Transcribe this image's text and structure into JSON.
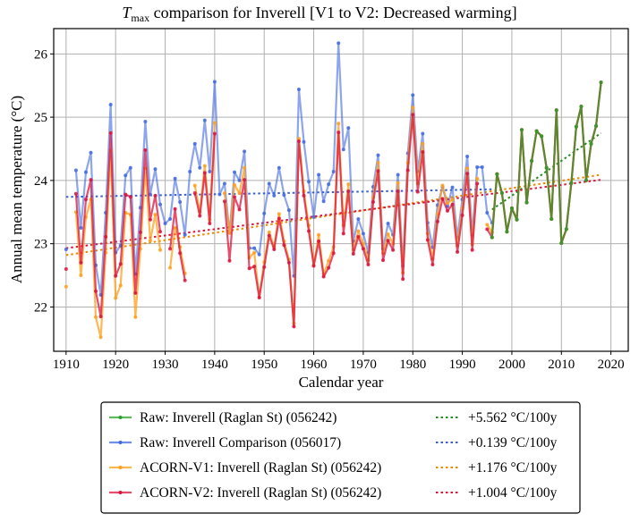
{
  "chart_data": {
    "type": "line",
    "title": {
      "symbol": "T",
      "subscript": "max",
      "text": " comparison for Inverell   [V1 to V2: Decreased warming]"
    },
    "xlabel": "Calendar year",
    "ylabel": "Annual mean temperature (°C)",
    "xlim": [
      1907.5,
      2023.5
    ],
    "ylim": [
      21.3,
      26.4
    ],
    "xticks": [
      1910,
      1920,
      1930,
      1940,
      1950,
      1960,
      1970,
      1980,
      1990,
      2000,
      2010,
      2020
    ],
    "yticks": [
      22,
      23,
      24,
      25,
      26
    ],
    "grid": true,
    "legend_position": "below-center",
    "series": [
      {
        "name": "Raw: Inverell (Raglan St) (056242)",
        "color": "#2ca02c",
        "x": [
          1996,
          1997,
          1998,
          1999,
          2000,
          2001,
          2002,
          2003,
          2004,
          2005,
          2006,
          2007,
          2008,
          2009,
          2010,
          2011,
          2012,
          2013,
          2014,
          2015,
          2016,
          2017,
          2018
        ],
        "y": [
          23.1,
          24.1,
          23.8,
          23.19,
          23.56,
          23.38,
          24.8,
          23.65,
          24.31,
          24.78,
          24.7,
          24.2,
          23.39,
          25.11,
          23.01,
          23.23,
          23.96,
          24.85,
          25.17,
          24.0,
          24.58,
          24.86,
          25.55
        ]
      },
      {
        "name": "Raw: Inverell Comparison (056017)",
        "color": "#4169e1",
        "x": [
          1910,
          1912,
          1913,
          1914,
          1915,
          1916,
          1917,
          1918,
          1919,
          1920,
          1921,
          1922,
          1923,
          1924,
          1925,
          1926,
          1927,
          1928,
          1929,
          1930,
          1931,
          1932,
          1933,
          1934,
          1935,
          1936,
          1937,
          1938,
          1939,
          1940,
          1941,
          1942,
          1943,
          1944,
          1945,
          1946,
          1947,
          1948,
          1949,
          1950,
          1951,
          1952,
          1953,
          1954,
          1955,
          1956,
          1957,
          1958,
          1959,
          1960,
          1961,
          1962,
          1963,
          1964,
          1965,
          1966,
          1967,
          1968,
          1969,
          1970,
          1971,
          1972,
          1973,
          1974,
          1975,
          1976,
          1977,
          1978,
          1979,
          1980,
          1981,
          1982,
          1983,
          1984,
          1985,
          1986,
          1987,
          1988,
          1989,
          1990,
          1991,
          1992,
          1993,
          1994,
          1995,
          1996
        ],
        "y": [
          22.91,
          24.16,
          23.25,
          24.13,
          24.44,
          22.66,
          22.19,
          23.49,
          25.2,
          22.86,
          22.97,
          24.08,
          24.2,
          22.52,
          23.57,
          24.93,
          23.78,
          24.18,
          23.62,
          23.32,
          23.39,
          24.03,
          23.66,
          23.14,
          24.14,
          24.58,
          24.2,
          24.95,
          24.14,
          25.56,
          23.78,
          23.95,
          23.17,
          24.13,
          24.0,
          24.46,
          22.93,
          22.93,
          22.83,
          23.48,
          23.95,
          23.76,
          24.2,
          23.77,
          23.53,
          22.49,
          25.44,
          24.61,
          23.98,
          23.42,
          24.09,
          23.67,
          23.94,
          24.14,
          26.17,
          24.49,
          24.83,
          23.04,
          23.39,
          23.16,
          22.86,
          23.9,
          24.4,
          22.92,
          23.32,
          23.14,
          24.09,
          22.65,
          24.43,
          25.35,
          24.14,
          24.74,
          23.33,
          22.94,
          23.61,
          23.9,
          23.59,
          23.89,
          23.1,
          23.7,
          24.38,
          23.14,
          24.21,
          24.21,
          23.49,
          23.33
        ]
      },
      {
        "name": "ACORN-V1: Inverell (Raglan St) (056242)",
        "color": "#ff9f1c",
        "x": [
          1910,
          1912,
          1913,
          1914,
          1915,
          1916,
          1917,
          1918,
          1919,
          1920,
          1921,
          1922,
          1923,
          1924,
          1925,
          1926,
          1927,
          1928,
          1929,
          1931,
          1932,
          1933,
          1934,
          1936,
          1937,
          1938,
          1939,
          1940,
          1942,
          1943,
          1944,
          1945,
          1946,
          1947,
          1948,
          1949,
          1950,
          1951,
          1952,
          1953,
          1954,
          1955,
          1956,
          1957,
          1958,
          1959,
          1960,
          1961,
          1962,
          1963,
          1964,
          1965,
          1966,
          1967,
          1968,
          1969,
          1970,
          1971,
          1972,
          1973,
          1974,
          1975,
          1976,
          1977,
          1978,
          1979,
          1980,
          1981,
          1982,
          1983,
          1984,
          1985,
          1986,
          1987,
          1988,
          1989,
          1990,
          1991,
          1992,
          1993,
          1995,
          1996,
          1997,
          1998,
          1999,
          2000,
          2001,
          2002,
          2003,
          2004,
          2005,
          2006,
          2007,
          2008,
          2009,
          2010,
          2011,
          2012,
          2013,
          2014,
          2015,
          2016,
          2017,
          2018
        ],
        "y": [
          22.32,
          23.5,
          22.5,
          23.42,
          23.7,
          21.84,
          21.52,
          22.86,
          24.47,
          22.14,
          22.34,
          23.49,
          23.46,
          21.84,
          22.92,
          24.19,
          23.05,
          23.46,
          22.9,
          22.62,
          23.25,
          22.95,
          22.53,
          23.92,
          23.5,
          24.23,
          23.38,
          24.91,
          23.8,
          23.17,
          23.93,
          23.8,
          24.2,
          22.78,
          22.86,
          22.15,
          22.71,
          23.18,
          22.95,
          23.47,
          23.04,
          22.75,
          21.74,
          24.66,
          23.83,
          23.29,
          22.66,
          23.14,
          22.52,
          22.73,
          22.95,
          24.9,
          23.29,
          23.94,
          22.9,
          23.2,
          23.0,
          22.74,
          23.73,
          24.28,
          22.85,
          23.15,
          23.0,
          23.96,
          22.54,
          24.28,
          25.15,
          23.95,
          24.58,
          23.16,
          22.76,
          23.47,
          23.92,
          23.64,
          23.7,
          22.97,
          23.56,
          24.19,
          22.99,
          24.03,
          23.3,
          23.18,
          24.1,
          23.8,
          23.19,
          23.56,
          23.38,
          24.8,
          23.65,
          24.31,
          24.78,
          24.7,
          24.2,
          23.39,
          25.11,
          23.01,
          23.23,
          23.96,
          24.85,
          25.17,
          24.0,
          24.58,
          24.86,
          25.55
        ]
      },
      {
        "name": "ACORN-V2: Inverell (Raglan St) (056242)",
        "color": "#dc143c",
        "x": [
          1910,
          1912,
          1913,
          1914,
          1915,
          1916,
          1917,
          1918,
          1919,
          1920,
          1921,
          1922,
          1923,
          1924,
          1925,
          1926,
          1927,
          1928,
          1929,
          1931,
          1932,
          1933,
          1934,
          1936,
          1937,
          1938,
          1939,
          1940,
          1942,
          1943,
          1944,
          1945,
          1946,
          1947,
          1948,
          1949,
          1950,
          1951,
          1952,
          1953,
          1954,
          1955,
          1956,
          1957,
          1958,
          1959,
          1960,
          1961,
          1962,
          1963,
          1964,
          1965,
          1966,
          1967,
          1968,
          1969,
          1970,
          1971,
          1972,
          1973,
          1974,
          1975,
          1976,
          1977,
          1978,
          1979,
          1980,
          1981,
          1982,
          1983,
          1984,
          1985,
          1986,
          1987,
          1988,
          1989,
          1990,
          1991,
          1992,
          1993,
          1995,
          1996,
          1997,
          1998,
          1999,
          2000,
          2001,
          2002,
          2003,
          2004,
          2005,
          2006,
          2007,
          2008,
          2009,
          2010,
          2011,
          2012,
          2013,
          2014,
          2015,
          2016,
          2017,
          2018
        ],
        "y": [
          22.6,
          23.79,
          22.7,
          23.7,
          24.01,
          22.25,
          21.85,
          23.11,
          24.75,
          22.49,
          22.68,
          23.78,
          23.74,
          22.22,
          23.18,
          24.48,
          23.38,
          23.76,
          23.19,
          22.92,
          23.55,
          22.85,
          22.42,
          23.8,
          23.44,
          24.12,
          23.32,
          24.74,
          23.67,
          22.73,
          23.74,
          23.54,
          24.01,
          22.61,
          22.64,
          22.15,
          22.63,
          23.13,
          22.91,
          23.4,
          22.98,
          22.7,
          21.69,
          24.62,
          23.76,
          23.2,
          22.65,
          23.04,
          22.48,
          22.62,
          22.85,
          24.76,
          23.16,
          23.83,
          22.84,
          23.11,
          22.92,
          22.67,
          23.66,
          24.15,
          22.74,
          23.05,
          22.9,
          23.83,
          22.44,
          24.16,
          25.04,
          23.82,
          24.45,
          23.06,
          22.67,
          23.35,
          23.71,
          23.52,
          23.62,
          22.87,
          23.45,
          24.11,
          22.9,
          23.95,
          23.23,
          23.1,
          24.1,
          23.8,
          23.19,
          23.56,
          23.38,
          24.8,
          23.65,
          24.31,
          24.78,
          24.7,
          24.2,
          23.39,
          25.11,
          23.01,
          23.23,
          23.96,
          24.85,
          25.17,
          24.0,
          24.58,
          24.86,
          25.55
        ]
      }
    ],
    "trends": [
      {
        "label": "+5.562 °C/100y",
        "color": "#228b22",
        "x": [
          1996,
          2018
        ],
        "y": [
          23.54,
          24.75
        ]
      },
      {
        "label": "+0.139 °C/100y",
        "color": "#3a5fcd",
        "x": [
          1910,
          1996
        ],
        "y": [
          23.74,
          23.86
        ]
      },
      {
        "label": "+1.176 °C/100y",
        "color": "#ee8800",
        "x": [
          1910,
          2018
        ],
        "y": [
          22.82,
          24.09
        ]
      },
      {
        "label": "+1.004 °C/100y",
        "color": "#dc143c",
        "x": [
          1910,
          2018
        ],
        "y": [
          22.93,
          24.01
        ]
      }
    ]
  }
}
